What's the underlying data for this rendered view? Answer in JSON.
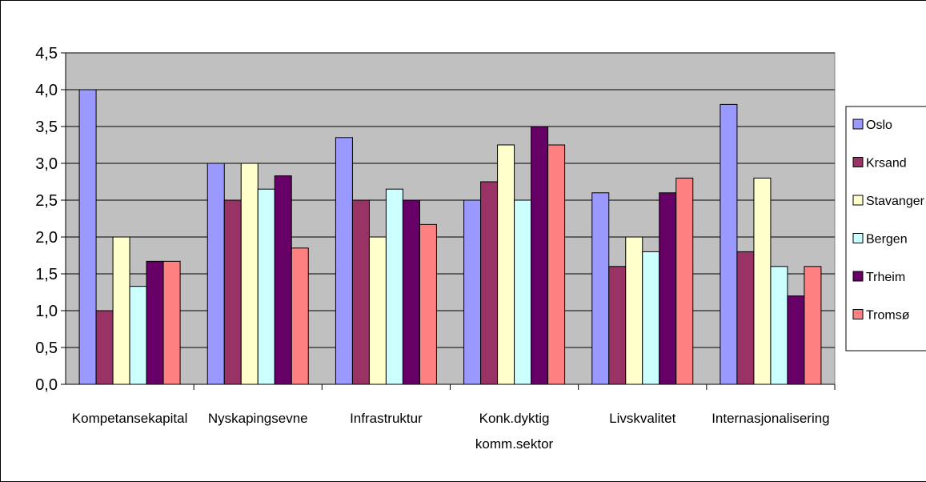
{
  "chart_data": {
    "type": "bar",
    "categories": [
      [
        "Kompetansekapital"
      ],
      [
        "Nyskapingsevne"
      ],
      [
        "Infrastruktur"
      ],
      [
        "Konk.dyktig",
        "komm.sektor"
      ],
      [
        "Livskvalitet"
      ],
      [
        "Internasjonalisering"
      ]
    ],
    "series": [
      {
        "name": "Oslo",
        "color": "#9999FF",
        "values": [
          4.0,
          3.0,
          3.35,
          2.5,
          2.6,
          3.8
        ]
      },
      {
        "name": "Krsand",
        "color": "#993366",
        "values": [
          1.0,
          2.5,
          2.5,
          2.75,
          1.6,
          1.8
        ]
      },
      {
        "name": "Stavanger",
        "color": "#FFFFCC",
        "values": [
          2.0,
          3.0,
          2.0,
          3.25,
          2.0,
          2.8
        ]
      },
      {
        "name": "Bergen",
        "color": "#CCFFFF",
        "values": [
          1.33,
          2.65,
          2.65,
          2.5,
          1.8,
          1.6
        ]
      },
      {
        "name": "Trheim",
        "color": "#660066",
        "values": [
          1.67,
          2.83,
          2.5,
          3.5,
          2.6,
          1.2
        ]
      },
      {
        "name": "Tromsø",
        "color": "#FF8080",
        "values": [
          1.67,
          1.85,
          2.17,
          3.25,
          2.8,
          1.6
        ]
      }
    ],
    "ylim": [
      0,
      4.5
    ],
    "yticks": [
      "0,0",
      "0,5",
      "1,0",
      "1,5",
      "2,0",
      "2,5",
      "3,0",
      "3,5",
      "4,0",
      "4,5"
    ],
    "plot_background": "#C0C0C0",
    "grid": true,
    "legend_position": "right"
  }
}
